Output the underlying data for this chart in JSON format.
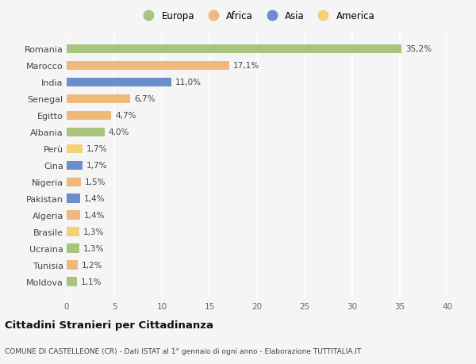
{
  "countries": [
    "Romania",
    "Marocco",
    "India",
    "Senegal",
    "Egitto",
    "Albania",
    "Perù",
    "Cina",
    "Nigeria",
    "Pakistan",
    "Algeria",
    "Brasile",
    "Ucraina",
    "Tunisia",
    "Moldova"
  ],
  "values": [
    35.2,
    17.1,
    11.0,
    6.7,
    4.7,
    4.0,
    1.7,
    1.7,
    1.5,
    1.4,
    1.4,
    1.3,
    1.3,
    1.2,
    1.1
  ],
  "labels": [
    "35,2%",
    "17,1%",
    "11,0%",
    "6,7%",
    "4,7%",
    "4,0%",
    "1,7%",
    "1,7%",
    "1,5%",
    "1,4%",
    "1,4%",
    "1,3%",
    "1,3%",
    "1,2%",
    "1,1%"
  ],
  "colors": [
    "#a8c47e",
    "#f0b87a",
    "#6b8fcb",
    "#f0b87a",
    "#f0b87a",
    "#a8c47e",
    "#f5d07a",
    "#6b8fcb",
    "#f0b87a",
    "#6b8fcb",
    "#f0b87a",
    "#f5d07a",
    "#a8c47e",
    "#f0b87a",
    "#a8c47e"
  ],
  "legend_labels": [
    "Europa",
    "Africa",
    "Asia",
    "America"
  ],
  "legend_colors": [
    "#a8c47e",
    "#f0b87a",
    "#6b8fcb",
    "#f5d07a"
  ],
  "xlim": [
    0,
    40
  ],
  "xticks": [
    0,
    5,
    10,
    15,
    20,
    25,
    30,
    35,
    40
  ],
  "title": "Cittadini Stranieri per Cittadinanza",
  "subtitle": "COMUNE DI CASTELLEONE (CR) - Dati ISTAT al 1° gennaio di ogni anno - Elaborazione TUTTITALIA.IT",
  "background_color": "#f5f5f5",
  "grid_color": "#ffffff",
  "bar_height": 0.55
}
